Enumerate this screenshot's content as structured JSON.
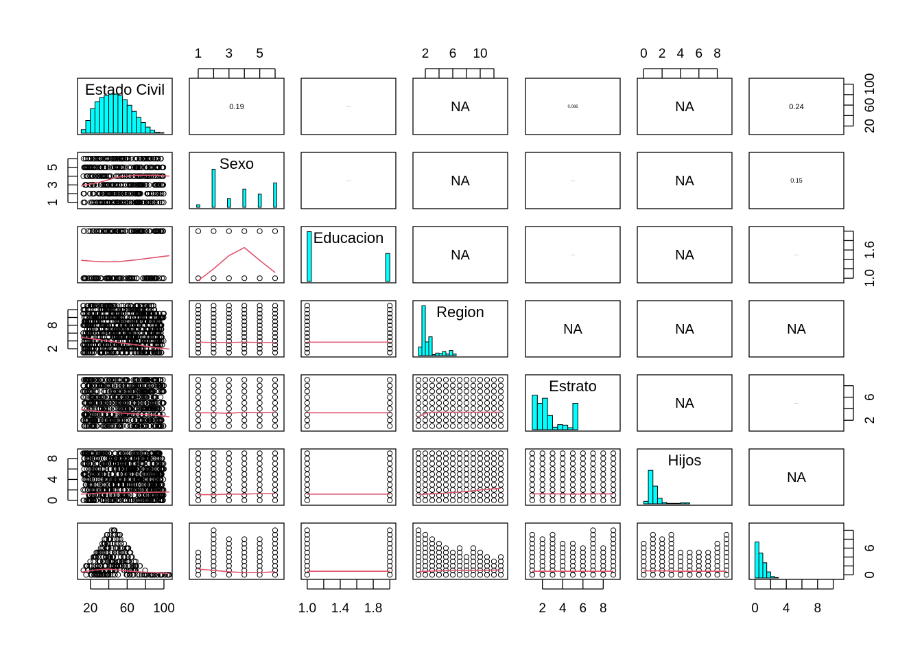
{
  "chart_data": {
    "type": "scatter",
    "variables": [
      "Estado Civil",
      "Sexo",
      "Educacion",
      "Region",
      "Estrato",
      "Hijos",
      ""
    ],
    "axes": {
      "top": [
        {
          "col": 1,
          "ticks": [
            1,
            2,
            3,
            4,
            5,
            6
          ],
          "labels": [
            "1",
            "3",
            "5"
          ],
          "label_values": [
            1,
            3,
            5
          ],
          "range": [
            0.6,
            6.4
          ]
        },
        {
          "col": 3,
          "ticks": [
            2,
            4,
            6,
            8,
            10,
            12
          ],
          "labels": [
            "2",
            "6",
            "10"
          ],
          "label_values": [
            2,
            6,
            10
          ],
          "range": [
            0.6,
            13.6
          ]
        },
        {
          "col": 5,
          "ticks": [
            0,
            2,
            4,
            6,
            8
          ],
          "labels": [
            "0",
            "2",
            "4",
            "6",
            "8"
          ],
          "label_values": [
            0,
            2,
            4,
            6,
            8
          ],
          "range": [
            -0.4,
            9.3
          ]
        }
      ],
      "bottom": [
        {
          "col": 0,
          "ticks": [
            20,
            40,
            60,
            80,
            100
          ],
          "labels": [
            "20",
            "60",
            "100"
          ],
          "label_values": [
            20,
            60,
            100
          ],
          "range": [
            9,
            106
          ]
        },
        {
          "col": 2,
          "ticks": [
            1.0,
            1.2,
            1.4,
            1.6,
            1.8,
            2.0
          ],
          "labels": [
            "1.0",
            "1.4",
            "1.8"
          ],
          "label_values": [
            1.0,
            1.4,
            1.8
          ],
          "range": [
            0.96,
            2.04
          ]
        },
        {
          "col": 4,
          "ticks": [
            2,
            4,
            6,
            8
          ],
          "labels": [
            "2",
            "4",
            "6",
            "8"
          ],
          "label_values": [
            2,
            4,
            6,
            8
          ],
          "range": [
            0.6,
            9.4
          ]
        },
        {
          "col": 6,
          "ticks": [
            0,
            2,
            4,
            6,
            8,
            10
          ],
          "labels": [
            "0",
            "4",
            "8"
          ],
          "label_values": [
            0,
            4,
            8
          ],
          "range": [
            -0.4,
            11
          ]
        }
      ],
      "left": [
        {
          "row": 1,
          "ticks": [
            1,
            2,
            3,
            4,
            5,
            6
          ],
          "labels": [
            "1",
            "3",
            "5"
          ],
          "label_values": [
            1,
            3,
            5
          ],
          "range": [
            0.6,
            6.4
          ]
        },
        {
          "row": 3,
          "ticks": [
            2,
            4,
            6,
            8,
            10,
            12
          ],
          "labels": [
            "2",
            "8"
          ],
          "label_values": [
            2,
            8
          ],
          "range": [
            0.6,
            13.6
          ]
        },
        {
          "row": 5,
          "ticks": [
            0,
            2,
            4,
            6,
            8
          ],
          "labels": [
            "0",
            "4",
            "8"
          ],
          "label_values": [
            0,
            4,
            8
          ],
          "range": [
            -0.4,
            9.3
          ]
        }
      ],
      "right": [
        {
          "row": 0,
          "ticks": [
            20,
            40,
            60,
            80,
            100
          ],
          "labels": [
            "20",
            "60",
            "100"
          ],
          "label_values": [
            20,
            60,
            100
          ],
          "range": [
            9,
            106
          ]
        },
        {
          "row": 2,
          "ticks": [
            1.0,
            1.2,
            1.4,
            1.6,
            1.8,
            2.0
          ],
          "labels": [
            "1.0",
            "1.6"
          ],
          "label_values": [
            1.0,
            1.6
          ],
          "range": [
            0.96,
            2.04
          ]
        },
        {
          "row": 4,
          "ticks": [
            2,
            4,
            6,
            8
          ],
          "labels": [
            "2",
            "6"
          ],
          "label_values": [
            2,
            6
          ],
          "range": [
            0.6,
            9.4
          ]
        },
        {
          "row": 6,
          "ticks": [
            0,
            2,
            4,
            6,
            8,
            10
          ],
          "labels": [
            "0",
            "6"
          ],
          "label_values": [
            0,
            6
          ],
          "range": [
            -0.4,
            11
          ]
        }
      ]
    },
    "upper_panels": [
      {
        "row": 0,
        "col": 1,
        "text": "0.19"
      },
      {
        "row": 0,
        "col": 2,
        "text": "···"
      },
      {
        "row": 0,
        "col": 3,
        "text": "NA"
      },
      {
        "row": 0,
        "col": 4,
        "text": "0.086"
      },
      {
        "row": 0,
        "col": 5,
        "text": "NA"
      },
      {
        "row": 0,
        "col": 6,
        "text": "0.24"
      },
      {
        "row": 1,
        "col": 2,
        "text": "···"
      },
      {
        "row": 1,
        "col": 3,
        "text": "NA"
      },
      {
        "row": 1,
        "col": 4,
        "text": "···"
      },
      {
        "row": 1,
        "col": 5,
        "text": "NA"
      },
      {
        "row": 1,
        "col": 6,
        "text": "0.15"
      },
      {
        "row": 2,
        "col": 3,
        "text": "NA"
      },
      {
        "row": 2,
        "col": 4,
        "text": "···"
      },
      {
        "row": 2,
        "col": 5,
        "text": "NA"
      },
      {
        "row": 2,
        "col": 6,
        "text": "···"
      },
      {
        "row": 3,
        "col": 4,
        "text": "NA"
      },
      {
        "row": 3,
        "col": 5,
        "text": "NA"
      },
      {
        "row": 3,
        "col": 6,
        "text": "NA"
      },
      {
        "row": 4,
        "col": 5,
        "text": "NA"
      },
      {
        "row": 4,
        "col": 6,
        "text": "···"
      },
      {
        "row": 5,
        "col": 6,
        "text": "NA"
      }
    ],
    "histograms": [
      {
        "var": 0,
        "bin_edges": [
          10,
          15,
          20,
          25,
          30,
          35,
          40,
          45,
          50,
          55,
          60,
          65,
          70,
          75,
          80,
          85,
          90,
          95,
          100
        ],
        "heights": [
          0.07,
          0.25,
          0.48,
          0.62,
          0.7,
          0.74,
          0.77,
          0.77,
          0.74,
          0.66,
          0.55,
          0.43,
          0.31,
          0.21,
          0.12,
          0.06,
          0.02,
          0.01
        ]
      },
      {
        "var": 1,
        "bin_edges": [
          0.9,
          1.1,
          1.9,
          2.1,
          2.9,
          3.1,
          3.9,
          4.1,
          4.9,
          5.1,
          5.9,
          6.1
        ],
        "bars": [
          [
            0.9,
            1.1,
            0.05
          ],
          [
            1.9,
            2.1,
            0.75
          ],
          [
            2.9,
            3.1,
            0.17
          ],
          [
            3.9,
            4.1,
            0.36
          ],
          [
            4.9,
            5.1,
            0.26
          ],
          [
            5.9,
            6.1,
            0.48
          ]
        ]
      },
      {
        "var": 2,
        "bars": [
          [
            1.0,
            1.05,
            0.98
          ],
          [
            1.95,
            2.0,
            0.55
          ]
        ]
      },
      {
        "var": 3,
        "bars": [
          [
            1,
            1.5,
            0.17
          ],
          [
            1.5,
            2,
            0.98
          ],
          [
            2,
            2.5,
            0.27
          ],
          [
            2.5,
            3,
            0.37
          ],
          [
            3,
            3.5,
            0.02
          ],
          [
            3.5,
            4,
            0.05
          ],
          [
            4,
            4.5,
            0.04
          ],
          [
            4.5,
            5,
            0.08
          ],
          [
            5,
            5.5,
            0.03
          ],
          [
            5.5,
            6,
            0.1
          ],
          [
            6,
            6.5,
            0.03
          ]
        ]
      },
      {
        "var": 4,
        "bars": [
          [
            1,
            1.5,
            0.68
          ],
          [
            1.5,
            2,
            0.52
          ],
          [
            2,
            2.5,
            0.62
          ],
          [
            2.5,
            3,
            0.28
          ],
          [
            3,
            3.5,
            0.05
          ],
          [
            3.5,
            4,
            0.1
          ],
          [
            4,
            4.5,
            0.09
          ],
          [
            4.5,
            5,
            0.04
          ],
          [
            5,
            5.5,
            0.52
          ]
        ]
      },
      {
        "var": 5,
        "bars": [
          [
            0,
            0.5,
            0.05
          ],
          [
            0.5,
            1,
            0.66
          ],
          [
            1,
            1.5,
            0.35
          ],
          [
            1.5,
            2,
            0.11
          ],
          [
            2,
            2.5,
            0.03
          ],
          [
            2.5,
            3,
            0.01
          ],
          [
            3,
            3.5,
            0.01
          ],
          [
            3.5,
            4,
            0.01
          ],
          [
            4,
            4.5,
            0.02
          ],
          [
            4.5,
            5,
            0.02
          ]
        ]
      },
      {
        "var": 6,
        "bars": [
          [
            0,
            0.5,
            0.71
          ],
          [
            0.5,
            1,
            0.49
          ],
          [
            1,
            1.5,
            0.3
          ],
          [
            1.5,
            2,
            0.12
          ],
          [
            2,
            2.5,
            0.03
          ],
          [
            2.5,
            3,
            0.01
          ]
        ]
      }
    ],
    "smooth_lines": [
      {
        "row": 1,
        "col": 0,
        "x": [
          10,
          30,
          50,
          70,
          90,
          106
        ],
        "y": [
          2.9,
          3.3,
          3.9,
          4.1,
          4.1,
          4.0
        ]
      },
      {
        "row": 2,
        "col": 0,
        "x": [
          10,
          30,
          50,
          70,
          90,
          106
        ],
        "y": [
          1.38,
          1.35,
          1.35,
          1.39,
          1.44,
          1.48
        ]
      },
      {
        "row": 2,
        "col": 1,
        "x": [
          1,
          2,
          3,
          4,
          5,
          6
        ],
        "y": [
          0.95,
          1.2,
          1.48,
          1.65,
          1.38,
          1.12
        ]
      },
      {
        "row": 3,
        "col": 0,
        "x": [
          10,
          30,
          50,
          70,
          90,
          106
        ],
        "y": [
          4.9,
          4.3,
          3.6,
          3.0,
          2.3,
          1.9
        ]
      },
      {
        "row": 3,
        "col": 1,
        "x": [
          1,
          2,
          3,
          4,
          5,
          6
        ],
        "y": [
          3.7,
          3.6,
          3.6,
          3.7,
          3.6,
          3.6
        ]
      },
      {
        "row": 3,
        "col": 2,
        "x": [
          1,
          1.5,
          2
        ],
        "y": [
          3.7,
          3.7,
          3.7
        ]
      },
      {
        "row": 4,
        "col": 0,
        "x": [
          10,
          30,
          50,
          70,
          90,
          106
        ],
        "y": [
          3.9,
          3.5,
          3.3,
          3.1,
          2.9,
          2.6
        ]
      },
      {
        "row": 4,
        "col": 1,
        "x": [
          1,
          2,
          3,
          4,
          5,
          6
        ],
        "y": [
          3.3,
          3.3,
          3.2,
          3.4,
          3.3,
          3.4
        ]
      },
      {
        "row": 4,
        "col": 2,
        "x": [
          1,
          1.5,
          2
        ],
        "y": [
          3.3,
          3.3,
          3.3
        ]
      },
      {
        "row": 4,
        "col": 3,
        "x": [
          1,
          2,
          3,
          5,
          8,
          11,
          13
        ],
        "y": [
          2.6,
          3.2,
          3.4,
          3.4,
          3.4,
          3.4,
          3.4
        ]
      },
      {
        "row": 5,
        "col": 0,
        "x": [
          10,
          30,
          50,
          70,
          90,
          106
        ],
        "y": [
          1.2,
          1.4,
          1.45,
          1.5,
          1.55,
          1.6
        ]
      },
      {
        "row": 5,
        "col": 1,
        "x": [
          1,
          2,
          3,
          4,
          5,
          6
        ],
        "y": [
          1.1,
          1.1,
          1.2,
          1.2,
          1.3,
          1.3
        ]
      },
      {
        "row": 5,
        "col": 2,
        "x": [
          1,
          1.5,
          2
        ],
        "y": [
          1.2,
          1.2,
          1.2
        ]
      },
      {
        "row": 5,
        "col": 3,
        "x": [
          1,
          2,
          4,
          6,
          8,
          10,
          13
        ],
        "y": [
          1.1,
          1.2,
          1.3,
          1.5,
          1.7,
          2.0,
          2.3
        ]
      },
      {
        "row": 5,
        "col": 4,
        "x": [
          1,
          3,
          5,
          7,
          9
        ],
        "y": [
          1.25,
          1.25,
          1.2,
          1.25,
          1.25
        ]
      },
      {
        "row": 6,
        "col": 0,
        "x": [
          10,
          25,
          40,
          55,
          70,
          90,
          106
        ],
        "y": [
          0.6,
          1.1,
          1.3,
          1.0,
          0.7,
          0.5,
          0.3
        ]
      },
      {
        "row": 6,
        "col": 1,
        "x": [
          1,
          2,
          3,
          4,
          5,
          6
        ],
        "y": [
          1.3,
          1.0,
          0.7,
          0.5,
          0.5,
          0.7
        ]
      },
      {
        "row": 6,
        "col": 2,
        "x": [
          1,
          1.5,
          2
        ],
        "y": [
          0.8,
          0.8,
          0.8
        ]
      },
      {
        "row": 6,
        "col": 3,
        "x": [
          1,
          2,
          4,
          6,
          8,
          10,
          13
        ],
        "y": [
          0.7,
          0.8,
          0.9,
          1.0,
          1.0,
          1.0,
          1.1
        ]
      },
      {
        "row": 6,
        "col": 4,
        "x": [
          1,
          3,
          5,
          7,
          9
        ],
        "y": [
          0.8,
          0.8,
          0.8,
          0.8,
          0.8
        ]
      },
      {
        "row": 6,
        "col": 5,
        "x": [
          0,
          2,
          4,
          6,
          8,
          9
        ],
        "y": [
          0.9,
          0.9,
          0.8,
          0.8,
          0.8,
          0.8
        ]
      }
    ]
  }
}
